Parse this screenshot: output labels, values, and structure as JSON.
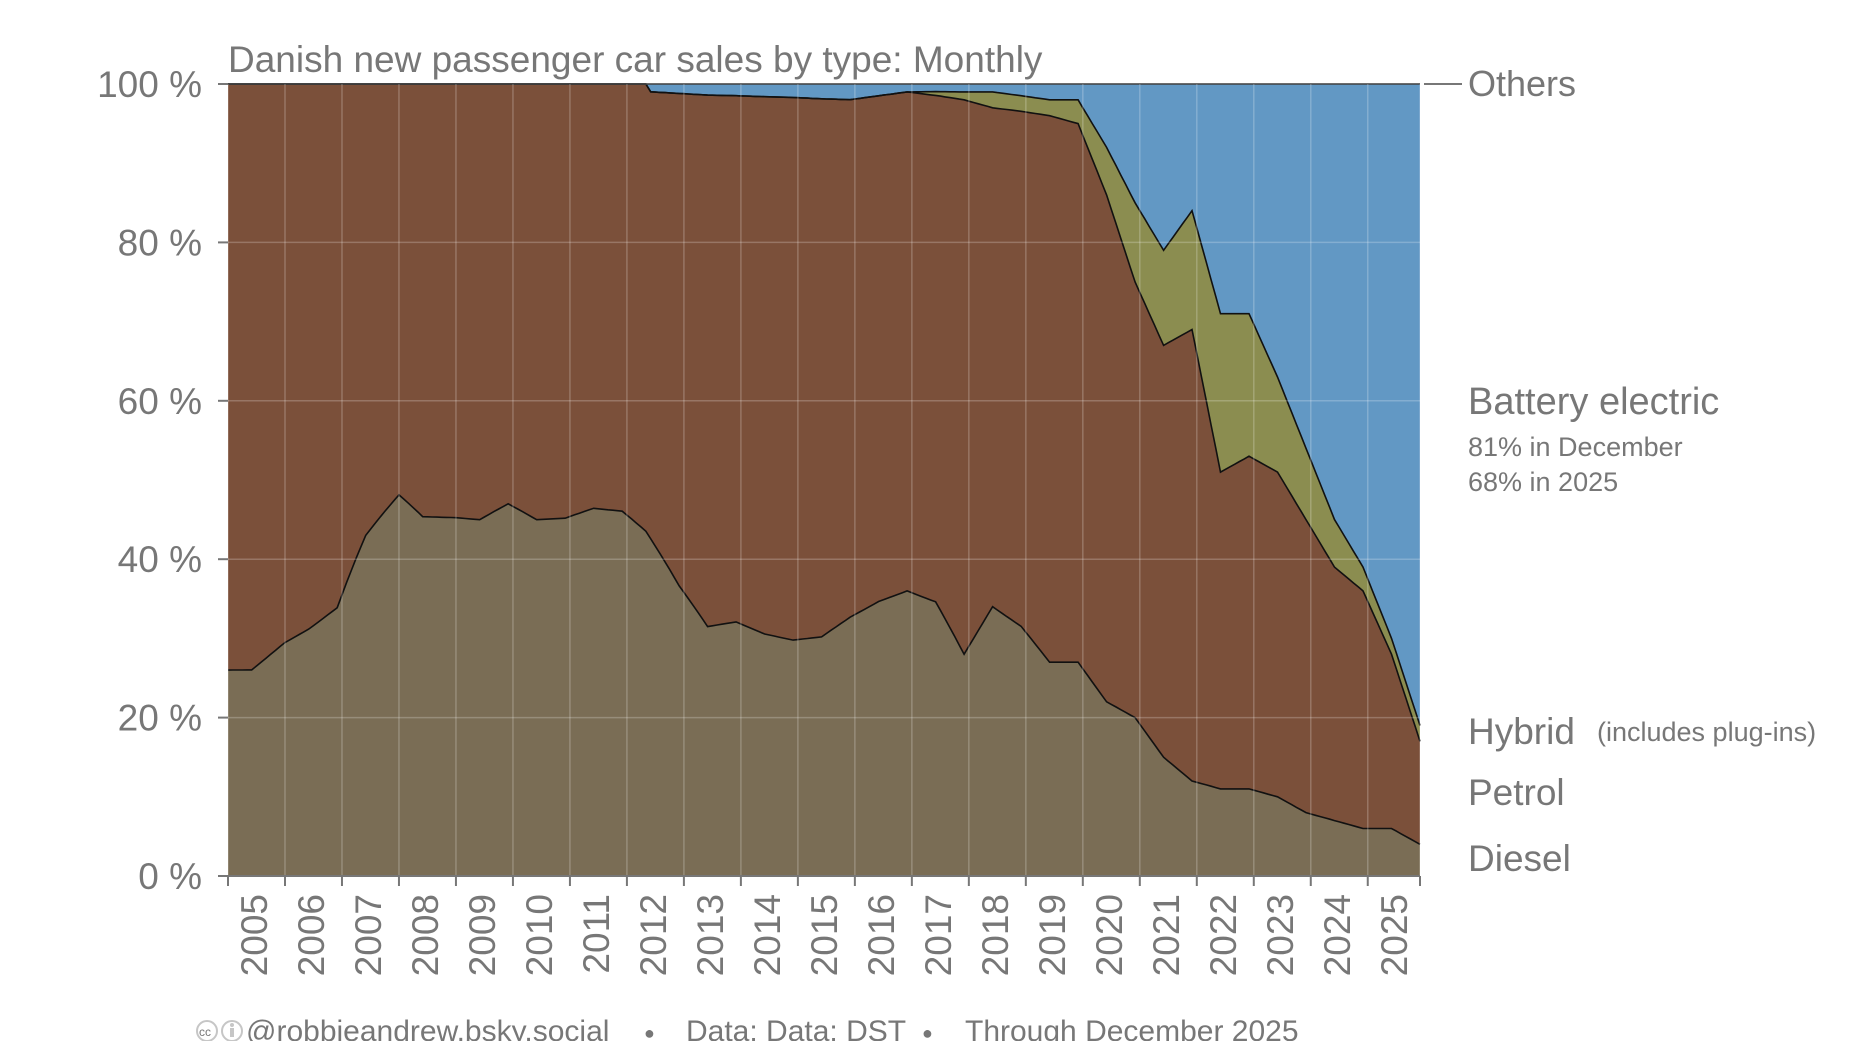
{
  "chart_data": {
    "type": "area",
    "stacked": true,
    "normalized": true,
    "title": "Danish new passenger car sales by type: Monthly",
    "xlabel": "",
    "ylabel": "",
    "ylim": [
      0,
      100
    ],
    "xlim": [
      "2005-01",
      "2025-12"
    ],
    "y_ticks": [
      "0 %",
      "20 %",
      "40 %",
      "60 %",
      "80 %",
      "100 %"
    ],
    "x_ticks": [
      "2005",
      "2006",
      "2007",
      "2008",
      "2009",
      "2010",
      "2011",
      "2012",
      "2013",
      "2014",
      "2015",
      "2016",
      "2017",
      "2018",
      "2019",
      "2020",
      "2021",
      "2022",
      "2023",
      "2024",
      "2025"
    ],
    "grid": true,
    "legend": "right",
    "series_order_bottom_to_top": [
      "Diesel",
      "Petrol",
      "Hybrid",
      "Battery electric",
      "Others"
    ],
    "colors": {
      "Diesel": "#7a6d55",
      "Petrol": "#7b503a",
      "Hybrid": "#8b8d50",
      "Battery electric": "#6298c4",
      "Others": "#404040"
    },
    "series": [
      {
        "name": "Diesel",
        "x": [
          "2005-01",
          "2005-06",
          "2006-01",
          "2006-06",
          "2006-12",
          "2007-06",
          "2008-01",
          "2008-06",
          "2009-01",
          "2009-06",
          "2009-12",
          "2010-06",
          "2010-12",
          "2011-06",
          "2011-12",
          "2012-06",
          "2012-12",
          "2013-06",
          "2013-12",
          "2014-06",
          "2014-12",
          "2015-06",
          "2015-12",
          "2016-06",
          "2016-12",
          "2017-06",
          "2017-12",
          "2018-06",
          "2018-12",
          "2019-06",
          "2019-12",
          "2020-06",
          "2020-12",
          "2021-06",
          "2021-12",
          "2022-06",
          "2022-12",
          "2023-06",
          "2023-12",
          "2024-06",
          "2024-12",
          "2025-06",
          "2025-12"
        ],
        "values": [
          26,
          25,
          28,
          29,
          31,
          43,
          52,
          46,
          45,
          44,
          47,
          44,
          45,
          48,
          48,
          43,
          35,
          29,
          31,
          30,
          30,
          30,
          33,
          35,
          36,
          36,
          28,
          34,
          32,
          27,
          27,
          22,
          20,
          15,
          12,
          11,
          11,
          10,
          8,
          7,
          6,
          6,
          4
        ]
      },
      {
        "name": "Petrol",
        "x": [
          "2005-01",
          "2007-06",
          "2009-12",
          "2012-06",
          "2014-12",
          "2016-12",
          "2017-12",
          "2018-06",
          "2019-06",
          "2019-12",
          "2020-06",
          "2020-12",
          "2021-06",
          "2021-12",
          "2022-06",
          "2022-12",
          "2023-06",
          "2023-12",
          "2024-06",
          "2024-12",
          "2025-06",
          "2025-12"
        ],
        "values": [
          74,
          57,
          53,
          57,
          69,
          63,
          70,
          63,
          69,
          68,
          64,
          55,
          52,
          57,
          40,
          42,
          41,
          37,
          32,
          30,
          22,
          13
        ]
      },
      {
        "name": "Hybrid",
        "x": [
          "2016-12",
          "2017-12",
          "2018-06",
          "2019-06",
          "2019-12",
          "2020-06",
          "2020-12",
          "2021-06",
          "2021-12",
          "2022-06",
          "2022-12",
          "2023-06",
          "2023-12",
          "2024-06",
          "2024-12",
          "2025-06",
          "2025-12"
        ],
        "values": [
          0,
          1,
          2,
          2,
          3,
          6,
          10,
          12,
          15,
          20,
          18,
          12,
          9,
          6,
          3,
          2,
          2
        ]
      },
      {
        "name": "Battery electric",
        "x": [
          "2012-06",
          "2015-12",
          "2016-12",
          "2017-12",
          "2018-06",
          "2019-06",
          "2019-12",
          "2020-06",
          "2020-12",
          "2021-06",
          "2021-12",
          "2022-06",
          "2022-12",
          "2023-06",
          "2023-12",
          "2024-06",
          "2024-12",
          "2025-06",
          "2025-12"
        ],
        "values": [
          1,
          2,
          1,
          1,
          1,
          2,
          2,
          8,
          15,
          21,
          16,
          29,
          29,
          37,
          46,
          55,
          61,
          70,
          81
        ]
      },
      {
        "name": "Others",
        "x": [
          "2005-01",
          "2025-12"
        ],
        "values": [
          0,
          0
        ]
      }
    ],
    "annotations": {
      "others_label": "Others",
      "bev_label": "Battery electric",
      "bev_line1": "81% in December",
      "bev_line2": "68% in 2025",
      "hybrid_label": "Hybrid",
      "hybrid_note": "(includes plug-ins)",
      "petrol_label": "Petrol",
      "diesel_label": "Diesel"
    },
    "footer": {
      "handle": "@robbieandrew.bsky.social",
      "source": "Data: Data: DST",
      "through": "Through December 2025",
      "separator": "●"
    }
  }
}
